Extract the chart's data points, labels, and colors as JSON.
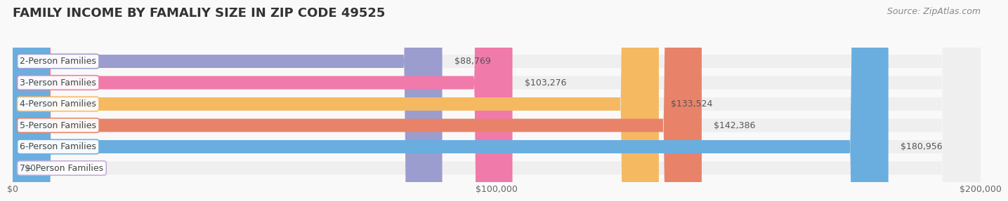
{
  "title": "FAMILY INCOME BY FAMALIY SIZE IN ZIP CODE 49525",
  "source": "Source: ZipAtlas.com",
  "categories": [
    "2-Person Families",
    "3-Person Families",
    "4-Person Families",
    "5-Person Families",
    "6-Person Families",
    "7+ Person Families"
  ],
  "values": [
    88769,
    103276,
    133524,
    142386,
    180956,
    0
  ],
  "bar_colors": [
    "#9b9dce",
    "#f07aaa",
    "#f5b962",
    "#e8836a",
    "#6aaee0",
    "#c4a8d4"
  ],
  "bar_bg_color": "#efefef",
  "value_labels": [
    "$88,769",
    "$103,276",
    "$133,524",
    "$142,386",
    "$180,956",
    "$0"
  ],
  "xlim": [
    0,
    200000
  ],
  "xticks": [
    0,
    100000,
    200000
  ],
  "xtick_labels": [
    "$0",
    "$100,000",
    "$200,000"
  ],
  "background_color": "#f9f9f9",
  "title_fontsize": 13,
  "label_fontsize": 9,
  "value_fontsize": 9,
  "source_fontsize": 9
}
